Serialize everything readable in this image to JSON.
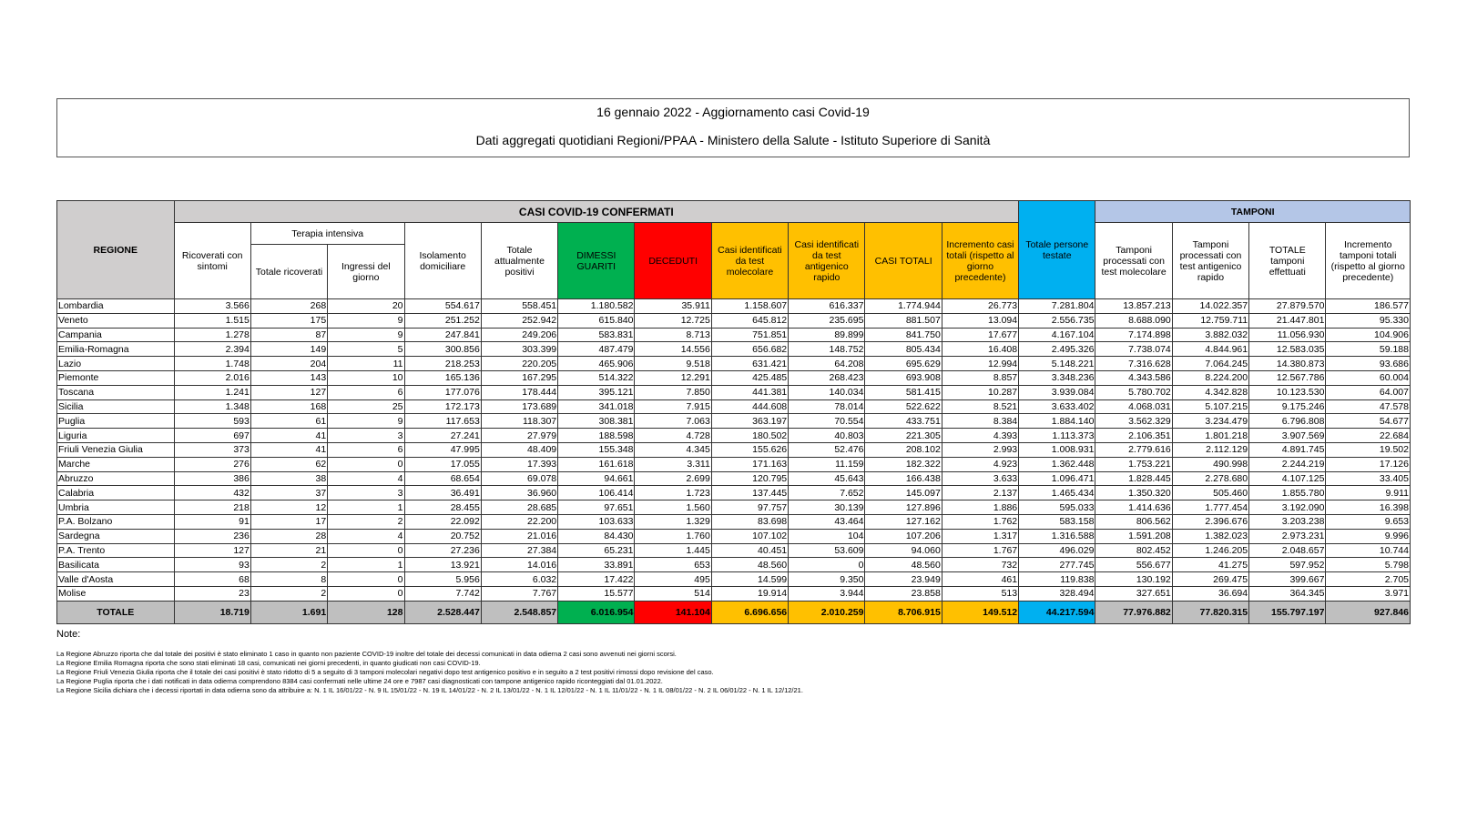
{
  "header": {
    "title": "16 gennaio 2022 - Aggiornamento casi Covid-19",
    "subtitle": "Dati aggregati quotidiani Regioni/PPAA - Ministero della Salute - Istituto Superiore di Sanità"
  },
  "table": {
    "group_headers": {
      "casi": "CASI COVID-19 CONFERMATI",
      "terapia": "Terapia intensiva",
      "tamponi": "TAMPONI"
    },
    "columns": [
      "REGIONE",
      "Ricoverati con sintomi",
      "Totale ricoverati",
      "Ingressi del giorno",
      "Isolamento domiciliare",
      "Totale attualmente positivi",
      "DIMESSI GUARITI",
      "DECEDUTI",
      "Casi identificati da test molecolare",
      "Casi identificati da test antigenico rapido",
      "CASI TOTALI",
      "Incremento casi totali (rispetto al giorno precedente)",
      "Totale persone testate",
      "Tamponi processati con test molecolare",
      "Tamponi processati con test antigenico rapido",
      "TOTALE tamponi effettuati",
      "Incremento tamponi totali (rispetto al giorno precedente)"
    ],
    "rows": [
      [
        "Lombardia",
        "3.566",
        "268",
        "20",
        "554.617",
        "558.451",
        "1.180.582",
        "35.911",
        "1.158.607",
        "616.337",
        "1.774.944",
        "26.773",
        "7.281.804",
        "13.857.213",
        "14.022.357",
        "27.879.570",
        "186.577"
      ],
      [
        "Veneto",
        "1.515",
        "175",
        "9",
        "251.252",
        "252.942",
        "615.840",
        "12.725",
        "645.812",
        "235.695",
        "881.507",
        "13.094",
        "2.556.735",
        "8.688.090",
        "12.759.711",
        "21.447.801",
        "95.330"
      ],
      [
        "Campania",
        "1.278",
        "87",
        "9",
        "247.841",
        "249.206",
        "583.831",
        "8.713",
        "751.851",
        "89.899",
        "841.750",
        "17.677",
        "4.167.104",
        "7.174.898",
        "3.882.032",
        "11.056.930",
        "104.906"
      ],
      [
        "Emilia-Romagna",
        "2.394",
        "149",
        "5",
        "300.856",
        "303.399",
        "487.479",
        "14.556",
        "656.682",
        "148.752",
        "805.434",
        "16.408",
        "2.495.326",
        "7.738.074",
        "4.844.961",
        "12.583.035",
        "59.188"
      ],
      [
        "Lazio",
        "1.748",
        "204",
        "11",
        "218.253",
        "220.205",
        "465.906",
        "9.518",
        "631.421",
        "64.208",
        "695.629",
        "12.994",
        "5.148.221",
        "7.316.628",
        "7.064.245",
        "14.380.873",
        "93.686"
      ],
      [
        "Piemonte",
        "2.016",
        "143",
        "10",
        "165.136",
        "167.295",
        "514.322",
        "12.291",
        "425.485",
        "268.423",
        "693.908",
        "8.857",
        "3.348.236",
        "4.343.586",
        "8.224.200",
        "12.567.786",
        "60.004"
      ],
      [
        "Toscana",
        "1.241",
        "127",
        "6",
        "177.076",
        "178.444",
        "395.121",
        "7.850",
        "441.381",
        "140.034",
        "581.415",
        "10.287",
        "3.939.084",
        "5.780.702",
        "4.342.828",
        "10.123.530",
        "64.007"
      ],
      [
        "Sicilia",
        "1.348",
        "168",
        "25",
        "172.173",
        "173.689",
        "341.018",
        "7.915",
        "444.608",
        "78.014",
        "522.622",
        "8.521",
        "3.633.402",
        "4.068.031",
        "5.107.215",
        "9.175.246",
        "47.578"
      ],
      [
        "Puglia",
        "593",
        "61",
        "9",
        "117.653",
        "118.307",
        "308.381",
        "7.063",
        "363.197",
        "70.554",
        "433.751",
        "8.384",
        "1.884.140",
        "3.562.329",
        "3.234.479",
        "6.796.808",
        "54.677"
      ],
      [
        "Liguria",
        "697",
        "41",
        "3",
        "27.241",
        "27.979",
        "188.598",
        "4.728",
        "180.502",
        "40.803",
        "221.305",
        "4.393",
        "1.113.373",
        "2.106.351",
        "1.801.218",
        "3.907.569",
        "22.684"
      ],
      [
        "Friuli Venezia Giulia",
        "373",
        "41",
        "6",
        "47.995",
        "48.409",
        "155.348",
        "4.345",
        "155.626",
        "52.476",
        "208.102",
        "2.993",
        "1.008.931",
        "2.779.616",
        "2.112.129",
        "4.891.745",
        "19.502"
      ],
      [
        "Marche",
        "276",
        "62",
        "0",
        "17.055",
        "17.393",
        "161.618",
        "3.311",
        "171.163",
        "11.159",
        "182.322",
        "4.923",
        "1.362.448",
        "1.753.221",
        "490.998",
        "2.244.219",
        "17.126"
      ],
      [
        "Abruzzo",
        "386",
        "38",
        "4",
        "68.654",
        "69.078",
        "94.661",
        "2.699",
        "120.795",
        "45.643",
        "166.438",
        "3.633",
        "1.096.471",
        "1.828.445",
        "2.278.680",
        "4.107.125",
        "33.405"
      ],
      [
        "Calabria",
        "432",
        "37",
        "3",
        "36.491",
        "36.960",
        "106.414",
        "1.723",
        "137.445",
        "7.652",
        "145.097",
        "2.137",
        "1.465.434",
        "1.350.320",
        "505.460",
        "1.855.780",
        "9.911"
      ],
      [
        "Umbria",
        "218",
        "12",
        "1",
        "28.455",
        "28.685",
        "97.651",
        "1.560",
        "97.757",
        "30.139",
        "127.896",
        "1.886",
        "595.033",
        "1.414.636",
        "1.777.454",
        "3.192.090",
        "16.398"
      ],
      [
        "P.A. Bolzano",
        "91",
        "17",
        "2",
        "22.092",
        "22.200",
        "103.633",
        "1.329",
        "83.698",
        "43.464",
        "127.162",
        "1.762",
        "583.158",
        "806.562",
        "2.396.676",
        "3.203.238",
        "9.653"
      ],
      [
        "Sardegna",
        "236",
        "28",
        "4",
        "20.752",
        "21.016",
        "84.430",
        "1.760",
        "107.102",
        "104",
        "107.206",
        "1.317",
        "1.316.588",
        "1.591.208",
        "1.382.023",
        "2.973.231",
        "9.996"
      ],
      [
        "P.A. Trento",
        "127",
        "21",
        "0",
        "27.236",
        "27.384",
        "65.231",
        "1.445",
        "40.451",
        "53.609",
        "94.060",
        "1.767",
        "496.029",
        "802.452",
        "1.246.205",
        "2.048.657",
        "10.744"
      ],
      [
        "Basilicata",
        "93",
        "2",
        "1",
        "13.921",
        "14.016",
        "33.891",
        "653",
        "48.560",
        "0",
        "48.560",
        "732",
        "277.745",
        "556.677",
        "41.275",
        "597.952",
        "5.798"
      ],
      [
        "Valle d'Aosta",
        "68",
        "8",
        "0",
        "5.956",
        "6.032",
        "17.422",
        "495",
        "14.599",
        "9.350",
        "23.949",
        "461",
        "119.838",
        "130.192",
        "269.475",
        "399.667",
        "2.705"
      ],
      [
        "Molise",
        "23",
        "2",
        "0",
        "7.742",
        "7.767",
        "15.577",
        "514",
        "19.914",
        "3.944",
        "23.858",
        "513",
        "328.494",
        "327.651",
        "36.694",
        "364.345",
        "3.971"
      ]
    ],
    "total": [
      "TOTALE",
      "18.719",
      "1.691",
      "128",
      "2.528.447",
      "2.548.857",
      "6.016.954",
      "141.104",
      "6.696.656",
      "2.010.259",
      "8.706.915",
      "149.512",
      "44.217.594",
      "77.976.882",
      "77.820.315",
      "155.797.197",
      "927.846"
    ]
  },
  "notes": {
    "label": "Note:",
    "lines": [
      "La Regione Abruzzo riporta che dal totale dei positivi è stato eliminato 1 caso in quanto non paziente COVID-19 inoltre del totale dei decessi comunicati in data odierna 2 casi sono avvenuti nei giorni scorsi.",
      "La Regione Emilia Romagna riporta che sono stati eliminati 18 casi, comunicati nei giorni precedenti, in quanto giudicati non casi COVID-19.",
      "La Regione Friuli Venezia Giulia riporta che il totale dei casi positivi è stato ridotto di 5 a seguito di 3 tamponi molecolari negativi dopo test antigenico positivo e in seguito a 2 test positivi rimossi dopo revisione del caso.",
      "La Regione Puglia riporta che i dati notificati in data odierna comprendono 8384 casi confermati nelle ultime 24 ore e 7987 casi diagnosticati con tampone antigenico rapido riconteggiati dal 01.01.2022.",
      "La Regione Sicilia dichiara che i decessi riportati in data odierna sono da attribuire a: N. 1 IL 16/01/22 - N. 9 IL 15/01/22 - N. 19 IL 14/01/22 - N. 2 IL 13/01/22 - N. 1 IL 12/01/22 - N. 1 IL 11/01/22 - N. 1 IL 08/01/22 - N. 2 IL 06/01/22 - N. 1 IL 12/12/21."
    ]
  }
}
